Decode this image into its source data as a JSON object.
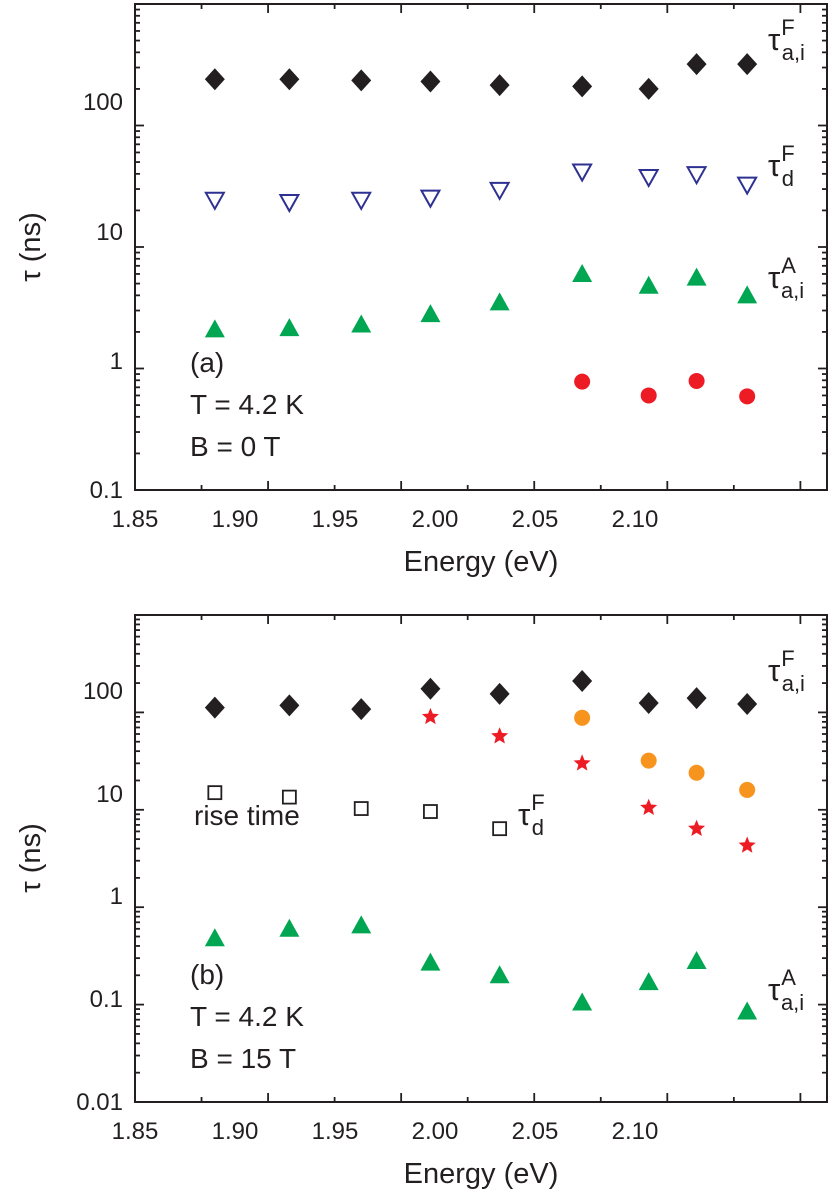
{
  "chart_data": [
    {
      "type": "scatter",
      "panel": "(a)",
      "xlabel": "Energy (eV)",
      "ylabel": "τ (ns)",
      "xlim": [
        1.85,
        2.11
      ],
      "ylim": [
        0.1,
        1000
      ],
      "yscale": "log",
      "grid": false,
      "x_ticks": [
        "1.85",
        "1.90",
        "1.95",
        "2.00",
        "2.05",
        "2.10"
      ],
      "y_ticks": [
        "0.1",
        "1",
        "10",
        "100"
      ],
      "annotations": [
        "(a)",
        "T = 4.2 K",
        "B = 0 T"
      ],
      "series": [
        {
          "name": "τ_a,i^F",
          "label": {
            "base": "τ",
            "sup": "F",
            "sub": "a,i"
          },
          "marker": "diamond",
          "color": "#231f20",
          "x": [
            1.88,
            1.908,
            1.935,
            1.961,
            1.987,
            2.018,
            2.043,
            2.061,
            2.08
          ],
          "y": [
            240,
            240,
            235,
            230,
            215,
            210,
            200,
            320,
            320
          ]
        },
        {
          "name": "τ_d^F",
          "label": {
            "base": "τ",
            "sup": "F",
            "sub": "d"
          },
          "marker": "triangle-down-open",
          "color": "#2e3192",
          "x": [
            1.88,
            1.908,
            1.935,
            1.961,
            1.987,
            2.018,
            2.043,
            2.061,
            2.08
          ],
          "y": [
            24,
            23,
            24,
            25,
            29,
            41,
            37,
            39,
            32
          ]
        },
        {
          "name": "τ_a,i^A",
          "label": {
            "base": "τ",
            "sup": "A",
            "sub": "a,i"
          },
          "marker": "triangle-up",
          "color": "#00a651",
          "x": [
            1.88,
            1.908,
            1.935,
            1.961,
            1.987,
            2.018,
            2.043,
            2.061,
            2.08
          ],
          "y": [
            2.1,
            2.15,
            2.3,
            2.8,
            3.5,
            6.0,
            4.8,
            5.6,
            4.0
          ]
        },
        {
          "name": "",
          "marker": "circle",
          "color": "#ed1c24",
          "x": [
            2.018,
            2.043,
            2.061,
            2.08
          ],
          "y": [
            0.78,
            0.6,
            0.79,
            0.59
          ]
        }
      ]
    },
    {
      "type": "scatter",
      "panel": "(b)",
      "xlabel": "Energy (eV)",
      "ylabel": "τ (ns)",
      "xlim": [
        1.85,
        2.11
      ],
      "ylim": [
        0.01,
        1000
      ],
      "yscale": "log",
      "grid": false,
      "x_ticks": [
        "1.85",
        "1.90",
        "1.95",
        "2.00",
        "2.05",
        "2.10"
      ],
      "y_ticks": [
        "0.01",
        "0.1",
        "1",
        "10",
        "100"
      ],
      "annotations": [
        "(b)",
        "T = 4.2 K",
        "B = 15 T",
        "rise time"
      ],
      "series": [
        {
          "name": "τ_a,i^F",
          "label": {
            "base": "τ",
            "sup": "F",
            "sub": "a,i"
          },
          "marker": "diamond",
          "color": "#231f20",
          "x": [
            1.88,
            1.908,
            1.935,
            1.961,
            1.987,
            2.018,
            2.043,
            2.061,
            2.08
          ],
          "y": [
            112,
            118,
            108,
            175,
            155,
            210,
            125,
            140,
            122
          ]
        },
        {
          "name": "τ_d^F",
          "label": {
            "base": "τ",
            "sup": "F",
            "sub": "d"
          },
          "marker": "square-open",
          "color": "#231f20",
          "x": [
            1.88,
            1.908,
            1.935,
            1.961,
            1.987
          ],
          "y": [
            15,
            13.5,
            10.3,
            9.6,
            6.4
          ]
        },
        {
          "name": "",
          "marker": "star",
          "color": "#ed1c24",
          "x": [
            1.961,
            1.987,
            2.018,
            2.043,
            2.061,
            2.08
          ],
          "y": [
            90,
            57,
            30,
            10.5,
            6.4,
            4.3
          ]
        },
        {
          "name": "",
          "marker": "circle",
          "color": "#f7941d",
          "x": [
            2.018,
            2.043,
            2.061,
            2.08
          ],
          "y": [
            88,
            32,
            24,
            16
          ]
        },
        {
          "name": "τ_a,i^A",
          "label": {
            "base": "τ",
            "sup": "A",
            "sub": "a,i"
          },
          "marker": "triangle-up",
          "color": "#00a651",
          "x": [
            1.88,
            1.908,
            1.935,
            1.961,
            1.987,
            2.018,
            2.043,
            2.061,
            2.08
          ],
          "y": [
            0.48,
            0.6,
            0.65,
            0.27,
            0.2,
            0.105,
            0.17,
            0.28,
            0.085
          ]
        }
      ]
    }
  ]
}
